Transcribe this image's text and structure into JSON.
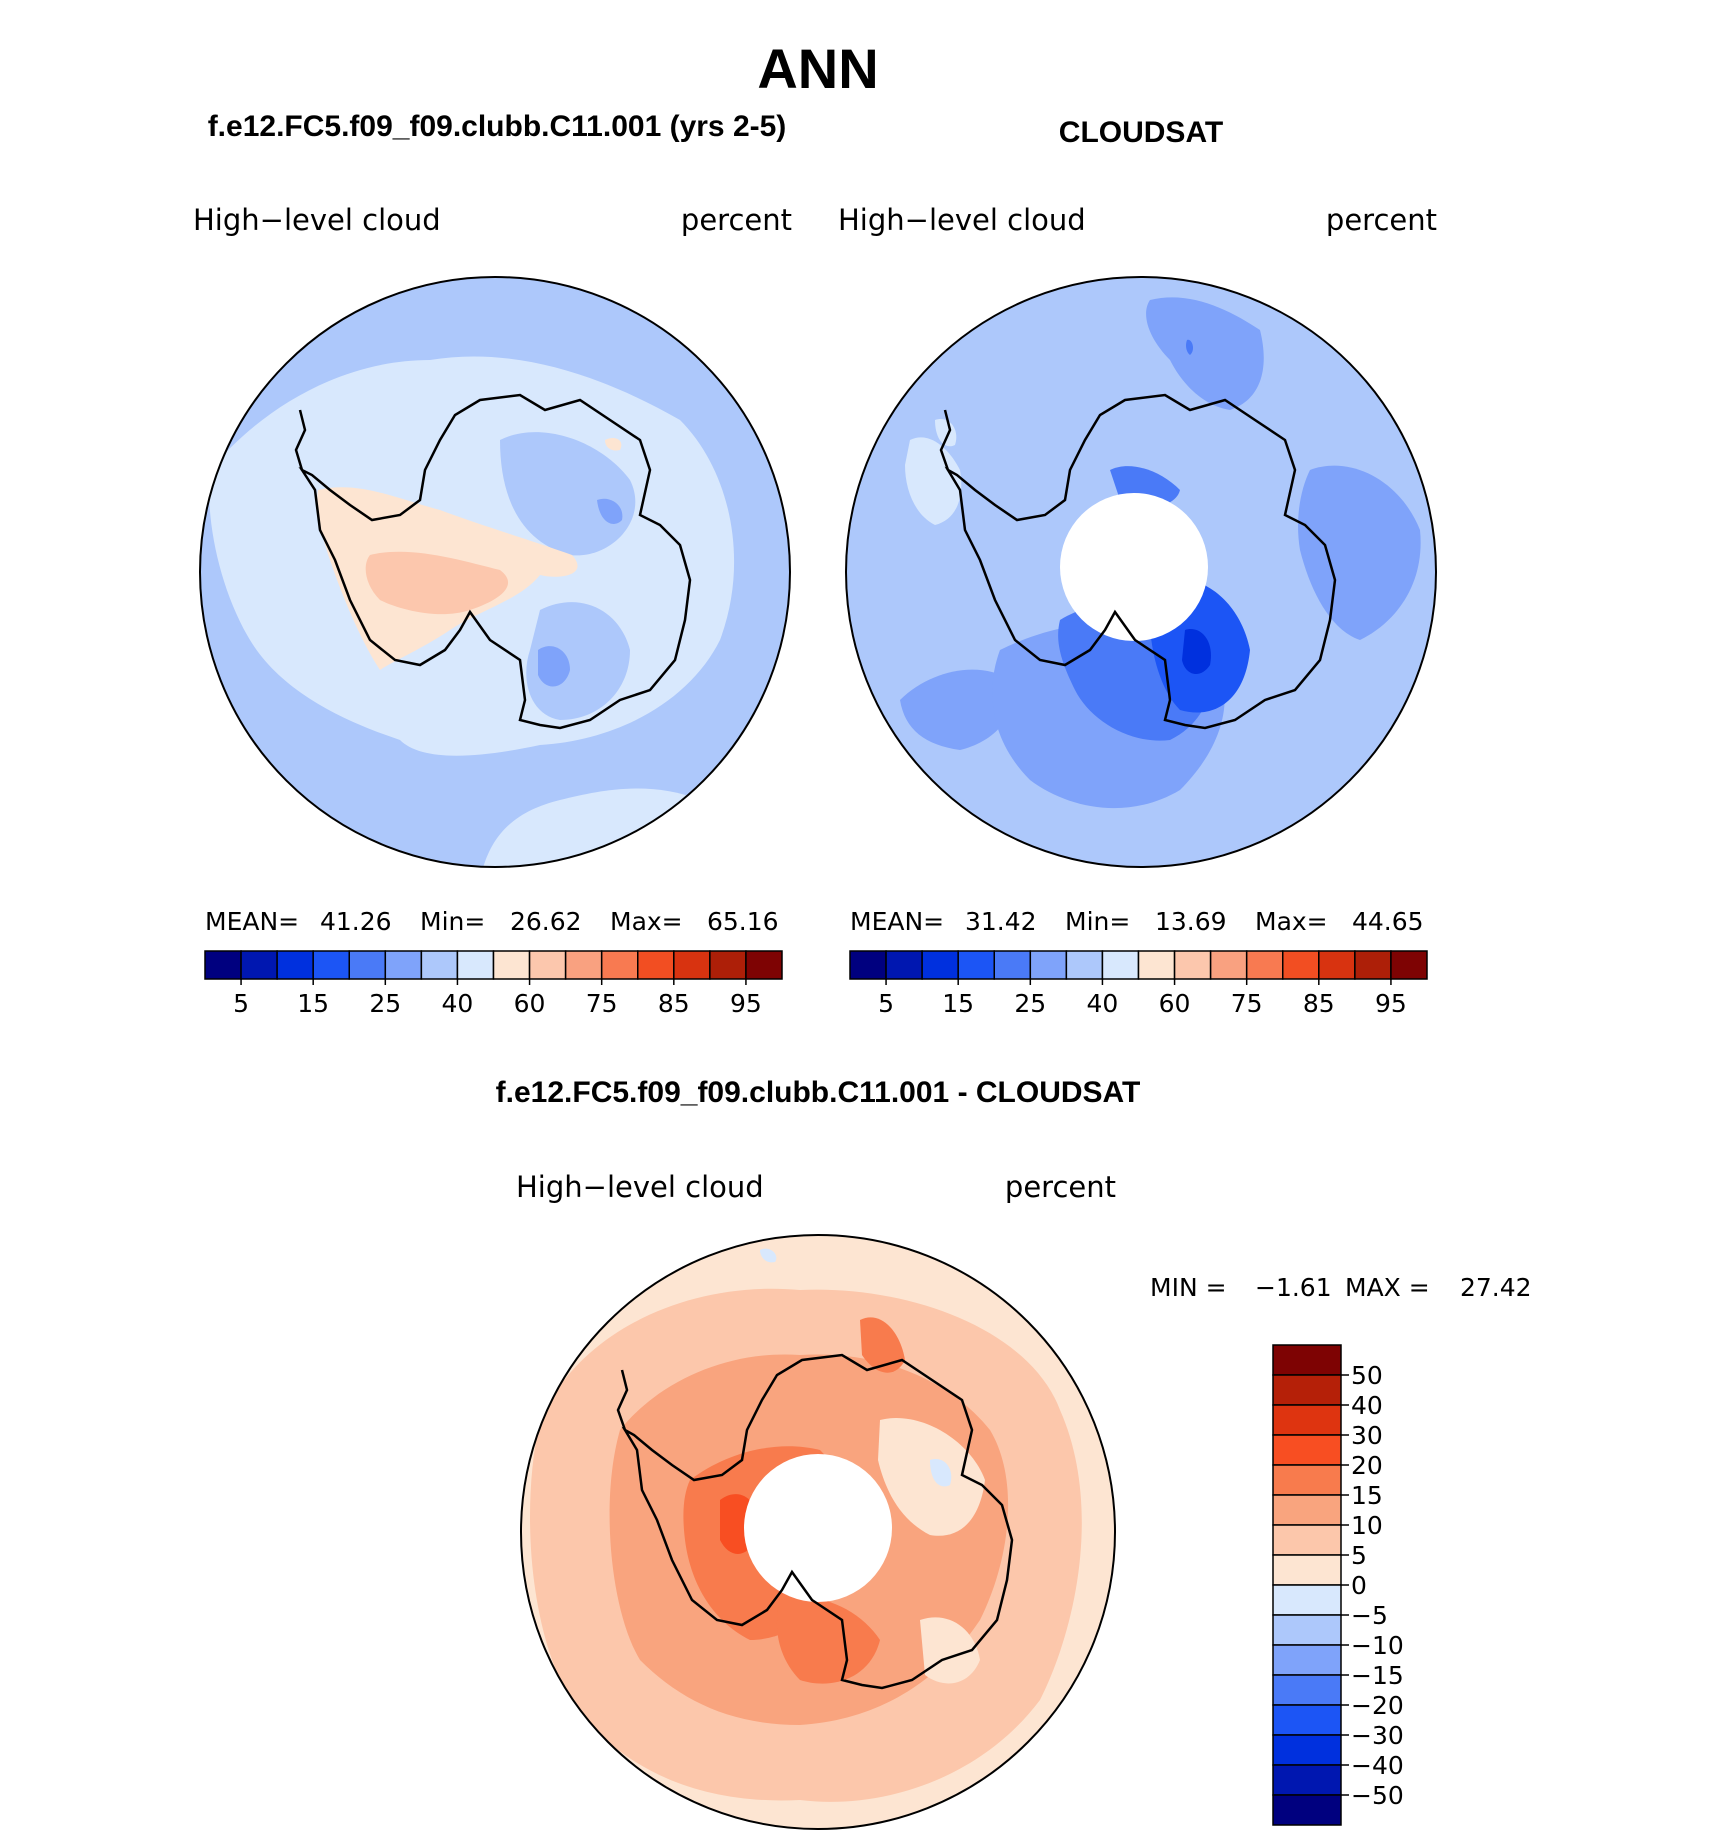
{
  "chart_data": {
    "type": "polar-contour-map",
    "title": "ANN",
    "panels": [
      {
        "id": "model",
        "case_title": "f.e12.FC5.f09_f09.clubb.C11.001 (yrs 2-5)",
        "variable": "High−level cloud",
        "units": "percent",
        "stats": {
          "mean_label": "MEAN=",
          "mean": "41.26",
          "min_label": "Min=",
          "min": "26.62",
          "max_label": "Max=",
          "max": "65.16"
        },
        "colorbar_ticks": [
          "5",
          "15",
          "25",
          "40",
          "60",
          "75",
          "85",
          "95"
        ]
      },
      {
        "id": "obs",
        "case_title": "CLOUDSAT",
        "variable": "High−level cloud",
        "units": "percent",
        "stats": {
          "mean_label": "MEAN=",
          "mean": "31.42",
          "min_label": "Min=",
          "min": "13.69",
          "max_label": "Max=",
          "max": "44.65"
        },
        "colorbar_ticks": [
          "5",
          "15",
          "25",
          "40",
          "60",
          "75",
          "85",
          "95"
        ]
      },
      {
        "id": "diff",
        "case_title": "f.e12.FC5.f09_f09.clubb.C11.001 - CLOUDSAT",
        "variable": "High−level cloud",
        "units": "percent",
        "stats": {
          "min_label": "MIN =",
          "min": "−1.61",
          "max_label": "MAX =",
          "max": "27.42"
        },
        "colorbar_ticks": [
          "50",
          "40",
          "30",
          "20",
          "15",
          "10",
          "5",
          "0",
          "−5",
          "−10",
          "−15",
          "−20",
          "−30",
          "−40",
          "−50"
        ]
      }
    ],
    "abs_colors": [
      "#00007f",
      "#0017b0",
      "#0030de",
      "#1c55f5",
      "#4a7af7",
      "#7fa3fa",
      "#adc8fb",
      "#d8e8fd",
      "#fde5d2",
      "#fcc7ad",
      "#f9a180",
      "#f87a51",
      "#f24e22",
      "#d83310",
      "#ad1f08",
      "#7e0303"
    ],
    "diff_colors": [
      "#7e0303",
      "#b52008",
      "#de3410",
      "#f84e22",
      "#f87b4d",
      "#f9a47e",
      "#fcc7ab",
      "#fde5d2",
      "#d8e8fd",
      "#adc8fb",
      "#7fa3fa",
      "#4a7af7",
      "#1c55f5",
      "#0030de",
      "#0017b0",
      "#00007f"
    ]
  }
}
